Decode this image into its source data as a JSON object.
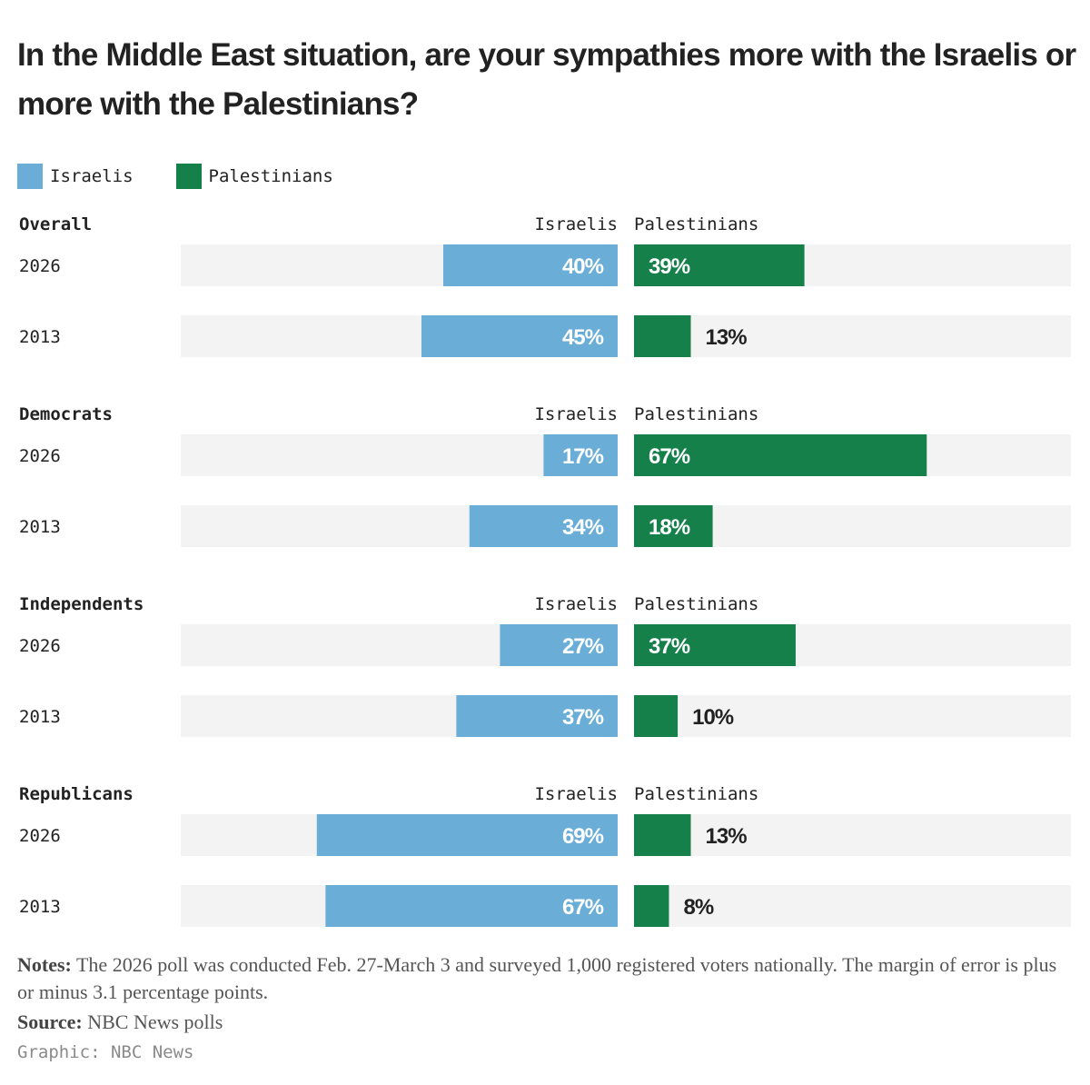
{
  "title": "In the Middle East situation, are your sympathies more with the Israelis or more with the Palestinians?",
  "legend": [
    {
      "label": "Israelis",
      "color": "#6aaed8"
    },
    {
      "label": "Palestinians",
      "color": "#16804b"
    }
  ],
  "column_headers": {
    "left": "Israelis",
    "right": "Palestinians"
  },
  "colors": {
    "israelis": "#6aaed8",
    "palestinians": "#16804b",
    "track": "#f3f3f3",
    "label_inside": "#ffffff",
    "label_outside": "#222222"
  },
  "chart_data": {
    "type": "bar",
    "groups": [
      {
        "name": "Overall",
        "rows": [
          {
            "year": "2026",
            "israelis": 40,
            "palestinians": 39
          },
          {
            "year": "2013",
            "israelis": 45,
            "palestinians": 13
          }
        ]
      },
      {
        "name": "Democrats",
        "rows": [
          {
            "year": "2026",
            "israelis": 17,
            "palestinians": 67
          },
          {
            "year": "2013",
            "israelis": 34,
            "palestinians": 18
          }
        ]
      },
      {
        "name": "Independents",
        "rows": [
          {
            "year": "2026",
            "israelis": 27,
            "palestinians": 37
          },
          {
            "year": "2013",
            "israelis": 37,
            "palestinians": 10
          }
        ]
      },
      {
        "name": "Republicans",
        "rows": [
          {
            "year": "2026",
            "israelis": 69,
            "palestinians": 13
          },
          {
            "year": "2013",
            "israelis": 67,
            "palestinians": 8
          }
        ]
      }
    ],
    "series": [
      {
        "name": "Israelis"
      },
      {
        "name": "Palestinians"
      }
    ],
    "unit": "%",
    "xlim": [
      0,
      100
    ]
  },
  "notes": {
    "label": "Notes:",
    "text": "The 2026 poll was conducted Feb. 27-March 3 and surveyed 1,000 registered voters nationally. The margin of error is plus or minus 3.1 percentage points."
  },
  "source": {
    "label": "Source:",
    "text": "NBC News polls"
  },
  "credit": "Graphic: NBC News"
}
